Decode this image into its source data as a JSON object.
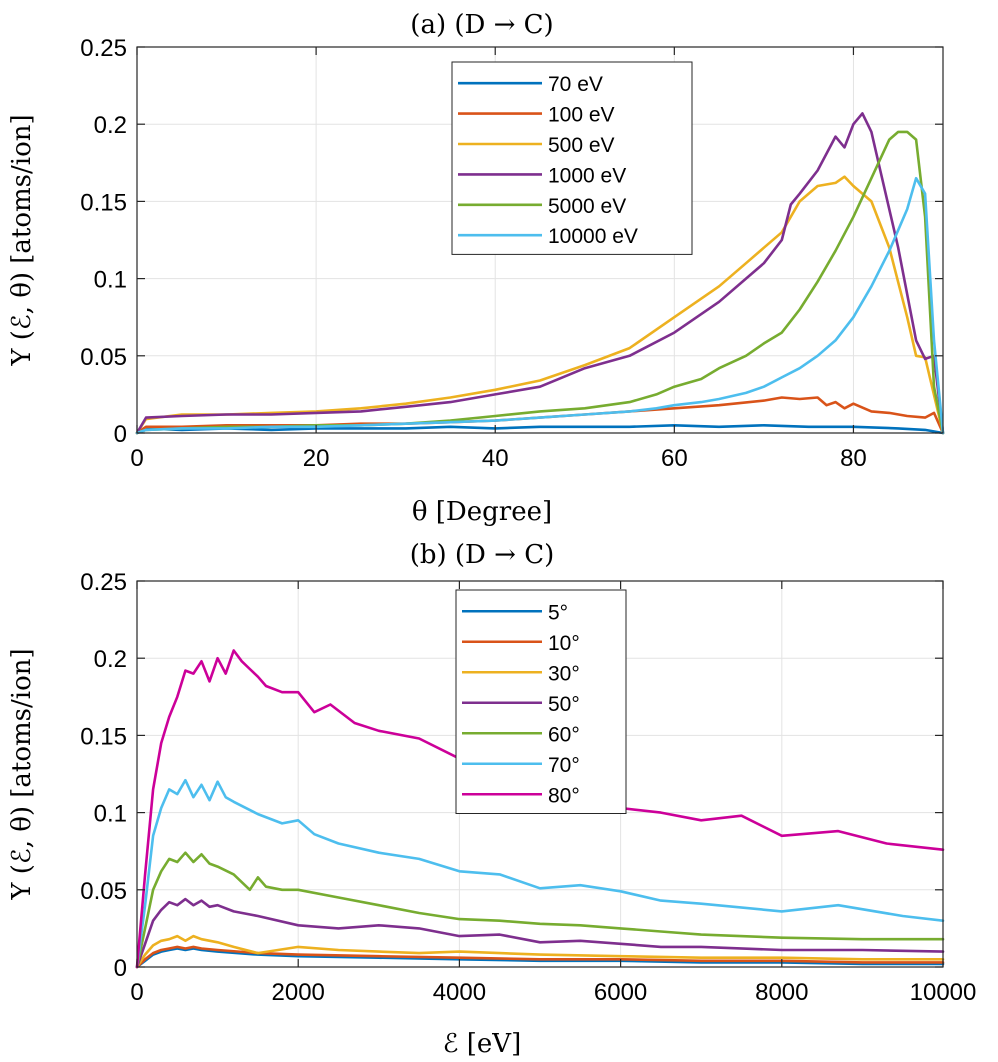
{
  "chart_data": [
    {
      "type": "line",
      "title": "(a) (D → C)",
      "xlabel": "θ [Degree]",
      "ylabel": "Y (ℰ, θ) [atoms/ion]",
      "xlim": [
        0,
        90
      ],
      "ylim": [
        0,
        0.25
      ],
      "xticks": [
        0,
        20,
        40,
        60,
        80
      ],
      "xtick_labels": [
        "0",
        "20",
        "40",
        "60",
        "80"
      ],
      "yticks": [
        0,
        0.05,
        0.1,
        0.15,
        0.2,
        0.25
      ],
      "ytick_labels": [
        "0",
        "0.05",
        "0.1",
        "0.15",
        "0.2",
        "0.25"
      ],
      "grid": true,
      "legend_position": "top-right",
      "series": [
        {
          "name": "70 eV",
          "color": "#0072BD",
          "x": [
            0,
            1,
            5,
            10,
            15,
            20,
            25,
            30,
            35,
            40,
            45,
            50,
            55,
            60,
            65,
            70,
            75,
            80,
            85,
            88,
            90
          ],
          "y": [
            0,
            0.003,
            0.002,
            0.003,
            0.002,
            0.003,
            0.003,
            0.003,
            0.004,
            0.003,
            0.004,
            0.004,
            0.004,
            0.005,
            0.004,
            0.005,
            0.004,
            0.004,
            0.003,
            0.002,
            0
          ]
        },
        {
          "name": "100 eV",
          "color": "#D95319",
          "x": [
            0,
            1,
            5,
            10,
            15,
            20,
            25,
            30,
            35,
            40,
            45,
            50,
            55,
            60,
            65,
            70,
            72,
            74,
            76,
            77,
            78,
            79,
            80,
            82,
            84,
            86,
            88,
            89,
            90
          ],
          "y": [
            0,
            0.004,
            0.004,
            0.005,
            0.005,
            0.005,
            0.006,
            0.006,
            0.007,
            0.008,
            0.01,
            0.012,
            0.014,
            0.016,
            0.018,
            0.021,
            0.023,
            0.022,
            0.023,
            0.018,
            0.02,
            0.016,
            0.019,
            0.014,
            0.013,
            0.011,
            0.01,
            0.013,
            0
          ]
        },
        {
          "name": "500 eV",
          "color": "#EDB120",
          "x": [
            0,
            1,
            5,
            10,
            15,
            20,
            25,
            30,
            35,
            40,
            45,
            50,
            55,
            60,
            65,
            68,
            70,
            72,
            74,
            76,
            78,
            79,
            80,
            82,
            84,
            86,
            87,
            88,
            90
          ],
          "y": [
            0,
            0.009,
            0.012,
            0.012,
            0.013,
            0.014,
            0.016,
            0.019,
            0.023,
            0.028,
            0.034,
            0.044,
            0.055,
            0.075,
            0.095,
            0.11,
            0.12,
            0.13,
            0.15,
            0.16,
            0.162,
            0.166,
            0.16,
            0.15,
            0.12,
            0.075,
            0.05,
            0.049,
            0
          ]
        },
        {
          "name": "1000 eV",
          "color": "#7E2F8E",
          "x": [
            0,
            1,
            5,
            10,
            15,
            20,
            25,
            30,
            35,
            40,
            45,
            50,
            55,
            60,
            65,
            68,
            70,
            72,
            73,
            74,
            76,
            78,
            79,
            80,
            81,
            82,
            83,
            85,
            87,
            88,
            89,
            90
          ],
          "y": [
            0,
            0.01,
            0.011,
            0.012,
            0.012,
            0.013,
            0.014,
            0.017,
            0.02,
            0.025,
            0.03,
            0.042,
            0.05,
            0.065,
            0.085,
            0.1,
            0.11,
            0.125,
            0.148,
            0.155,
            0.17,
            0.192,
            0.185,
            0.2,
            0.207,
            0.195,
            0.17,
            0.12,
            0.06,
            0.048,
            0.05,
            0
          ]
        },
        {
          "name": "5000 eV",
          "color": "#77AC30",
          "x": [
            0,
            1,
            5,
            10,
            15,
            20,
            25,
            30,
            35,
            40,
            45,
            50,
            55,
            58,
            60,
            63,
            65,
            68,
            70,
            72,
            74,
            76,
            78,
            80,
            82,
            84,
            85,
            86,
            87,
            88,
            89,
            90
          ],
          "y": [
            0,
            0.002,
            0.003,
            0.004,
            0.004,
            0.005,
            0.005,
            0.006,
            0.008,
            0.011,
            0.014,
            0.016,
            0.02,
            0.025,
            0.03,
            0.035,
            0.042,
            0.05,
            0.058,
            0.065,
            0.08,
            0.098,
            0.118,
            0.14,
            0.165,
            0.19,
            0.195,
            0.195,
            0.19,
            0.14,
            0.03,
            0
          ]
        },
        {
          "name": "10000 eV",
          "color": "#4DBEEE",
          "x": [
            0,
            1,
            5,
            10,
            15,
            20,
            25,
            30,
            35,
            40,
            45,
            50,
            55,
            58,
            60,
            63,
            65,
            68,
            70,
            72,
            74,
            76,
            78,
            80,
            82,
            84,
            86,
            87,
            88,
            89,
            90
          ],
          "y": [
            0,
            0.002,
            0.003,
            0.003,
            0.004,
            0.004,
            0.005,
            0.006,
            0.007,
            0.008,
            0.01,
            0.012,
            0.014,
            0.016,
            0.018,
            0.02,
            0.022,
            0.026,
            0.03,
            0.036,
            0.042,
            0.05,
            0.06,
            0.075,
            0.095,
            0.118,
            0.145,
            0.165,
            0.155,
            0.06,
            0
          ]
        }
      ]
    },
    {
      "type": "line",
      "title": "(b) (D → C)",
      "xlabel": "ℰ [eV]",
      "ylabel": "Y (ℰ, θ) [atoms/ion]",
      "xlim": [
        0,
        10000
      ],
      "ylim": [
        0,
        0.25
      ],
      "xticks": [
        0,
        2000,
        4000,
        6000,
        8000,
        10000
      ],
      "xtick_labels": [
        "0",
        "2000",
        "4000",
        "6000",
        "8000",
        "10000"
      ],
      "yticks": [
        0,
        0.05,
        0.1,
        0.15,
        0.2,
        0.25
      ],
      "ytick_labels": [
        "0",
        "0.05",
        "0.1",
        "0.15",
        "0.2",
        "0.25"
      ],
      "grid": true,
      "legend_position": "top-center",
      "series": [
        {
          "name": "5°",
          "color": "#0072BD",
          "x": [
            0,
            100,
            200,
            300,
            400,
            500,
            600,
            700,
            800,
            1000,
            1500,
            2000,
            3000,
            4000,
            5000,
            6000,
            7000,
            8000,
            9000,
            10000
          ],
          "y": [
            0,
            0.004,
            0.008,
            0.01,
            0.011,
            0.012,
            0.011,
            0.012,
            0.011,
            0.01,
            0.008,
            0.007,
            0.006,
            0.005,
            0.004,
            0.004,
            0.003,
            0.003,
            0.002,
            0.002
          ]
        },
        {
          "name": "10°",
          "color": "#D95319",
          "x": [
            0,
            100,
            200,
            300,
            400,
            500,
            600,
            700,
            800,
            1000,
            1500,
            2000,
            3000,
            4000,
            5000,
            6000,
            7000,
            8000,
            9000,
            10000
          ],
          "y": [
            0,
            0.005,
            0.009,
            0.011,
            0.012,
            0.013,
            0.012,
            0.013,
            0.012,
            0.011,
            0.009,
            0.008,
            0.007,
            0.006,
            0.005,
            0.005,
            0.004,
            0.004,
            0.003,
            0.003
          ]
        },
        {
          "name": "30°",
          "color": "#EDB120",
          "x": [
            0,
            100,
            200,
            300,
            400,
            500,
            600,
            700,
            800,
            1000,
            1200,
            1500,
            2000,
            2500,
            3000,
            3500,
            4000,
            4500,
            5000,
            6000,
            7000,
            8000,
            9000,
            10000
          ],
          "y": [
            0,
            0.008,
            0.014,
            0.017,
            0.018,
            0.02,
            0.017,
            0.02,
            0.018,
            0.016,
            0.013,
            0.009,
            0.013,
            0.011,
            0.01,
            0.009,
            0.01,
            0.009,
            0.008,
            0.007,
            0.006,
            0.006,
            0.005,
            0.005
          ]
        },
        {
          "name": "50°",
          "color": "#7E2F8E",
          "x": [
            0,
            100,
            200,
            300,
            400,
            500,
            600,
            700,
            800,
            900,
            1000,
            1200,
            1500,
            2000,
            2500,
            3000,
            3500,
            4000,
            4500,
            5000,
            5500,
            6000,
            6500,
            7000,
            8000,
            9000,
            10000
          ],
          "y": [
            0,
            0.015,
            0.03,
            0.037,
            0.042,
            0.04,
            0.044,
            0.04,
            0.043,
            0.039,
            0.04,
            0.036,
            0.033,
            0.027,
            0.025,
            0.027,
            0.025,
            0.02,
            0.021,
            0.016,
            0.017,
            0.015,
            0.013,
            0.013,
            0.011,
            0.011,
            0.01
          ]
        },
        {
          "name": "60°",
          "color": "#77AC30",
          "x": [
            0,
            100,
            200,
            300,
            400,
            500,
            600,
            700,
            800,
            900,
            1000,
            1200,
            1400,
            1500,
            1600,
            1800,
            2000,
            2500,
            3000,
            3500,
            4000,
            4500,
            5000,
            5500,
            6000,
            6500,
            7000,
            8000,
            9000,
            10000
          ],
          "y": [
            0,
            0.025,
            0.05,
            0.062,
            0.07,
            0.068,
            0.074,
            0.068,
            0.073,
            0.067,
            0.065,
            0.06,
            0.05,
            0.058,
            0.052,
            0.05,
            0.05,
            0.045,
            0.04,
            0.035,
            0.031,
            0.03,
            0.028,
            0.027,
            0.025,
            0.023,
            0.021,
            0.019,
            0.018,
            0.018
          ]
        },
        {
          "name": "70°",
          "color": "#4DBEEE",
          "x": [
            0,
            100,
            200,
            300,
            400,
            500,
            600,
            700,
            800,
            900,
            1000,
            1100,
            1200,
            1500,
            1800,
            2000,
            2200,
            2500,
            3000,
            3500,
            4000,
            4500,
            5000,
            5500,
            6000,
            6500,
            7000,
            8000,
            8700,
            9500,
            10000
          ],
          "y": [
            0,
            0.04,
            0.085,
            0.103,
            0.115,
            0.112,
            0.121,
            0.11,
            0.118,
            0.108,
            0.12,
            0.11,
            0.107,
            0.099,
            0.093,
            0.095,
            0.086,
            0.08,
            0.074,
            0.07,
            0.062,
            0.06,
            0.051,
            0.053,
            0.049,
            0.043,
            0.041,
            0.036,
            0.04,
            0.033,
            0.03
          ]
        },
        {
          "name": "80°",
          "color": "#CC0099",
          "x": [
            0,
            100,
            200,
            300,
            400,
            500,
            600,
            700,
            800,
            900,
            1000,
            1100,
            1200,
            1300,
            1400,
            1500,
            1600,
            1800,
            2000,
            2200,
            2400,
            2700,
            3000,
            3500,
            4000,
            4500,
            5000,
            5500,
            6000,
            6500,
            7000,
            7500,
            8000,
            8700,
            9300,
            10000
          ],
          "y": [
            0,
            0.06,
            0.115,
            0.145,
            0.162,
            0.175,
            0.192,
            0.19,
            0.198,
            0.185,
            0.2,
            0.19,
            0.205,
            0.198,
            0.193,
            0.188,
            0.182,
            0.178,
            0.178,
            0.165,
            0.17,
            0.158,
            0.153,
            0.148,
            0.135,
            0.135,
            0.125,
            0.115,
            0.103,
            0.1,
            0.095,
            0.098,
            0.085,
            0.088,
            0.08,
            0.076
          ]
        }
      ]
    }
  ]
}
